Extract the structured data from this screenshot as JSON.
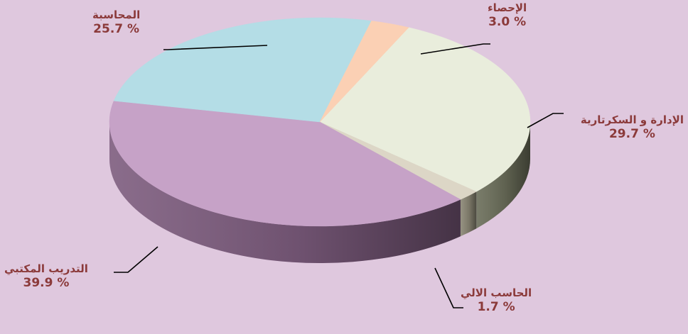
{
  "chart_data": {
    "type": "pie",
    "style": "3d-tilted",
    "slices": [
      {
        "label": "الإدارة و السكرتارية",
        "value": 29.7,
        "percent_text": "29.7 %",
        "color": "#e9eddc",
        "side_color": "#6b6e5a"
      },
      {
        "label": "الحاسب الالي",
        "value": 1.7,
        "percent_text": "1.7 %",
        "color": "#dcd6c6",
        "side_color": "#8a8674"
      },
      {
        "label": "التدريب المكتبي",
        "value": 39.9,
        "percent_text": "39.9 %",
        "color": "#c6a2c7",
        "side_color": "#7d5c7e"
      },
      {
        "label": "المحاسبة",
        "value": 25.7,
        "percent_text": "25.7 %",
        "color": "#b4dde6",
        "side_color": "#6a8f98"
      },
      {
        "label": "الإحصاء",
        "value": 3.0,
        "percent_text": "3.0 %",
        "color": "#fbd0b4",
        "side_color": "#a88870"
      }
    ],
    "label_color": "#8b3a3a",
    "background": "#dfc8de"
  }
}
